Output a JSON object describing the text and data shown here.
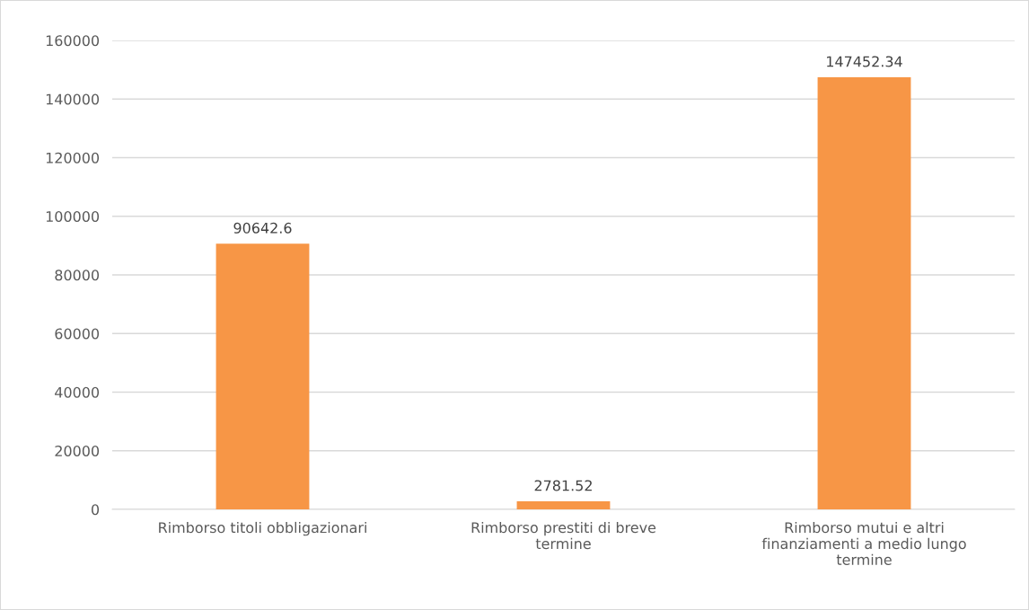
{
  "chart_data": {
    "type": "bar",
    "categories": [
      "Rimborso titoli obbligazionari",
      "Rimborso prestiti di breve termine",
      "Rimborso mutui e altri finanziamenti a medio lungo termine"
    ],
    "values": [
      90642.6,
      2781.52,
      147452.34
    ],
    "color": "#f79646",
    "ylim": [
      0,
      160000
    ],
    "yticks": [
      0,
      20000,
      40000,
      60000,
      80000,
      100000,
      120000,
      140000,
      160000
    ],
    "grid": "y",
    "data_labels": true
  }
}
